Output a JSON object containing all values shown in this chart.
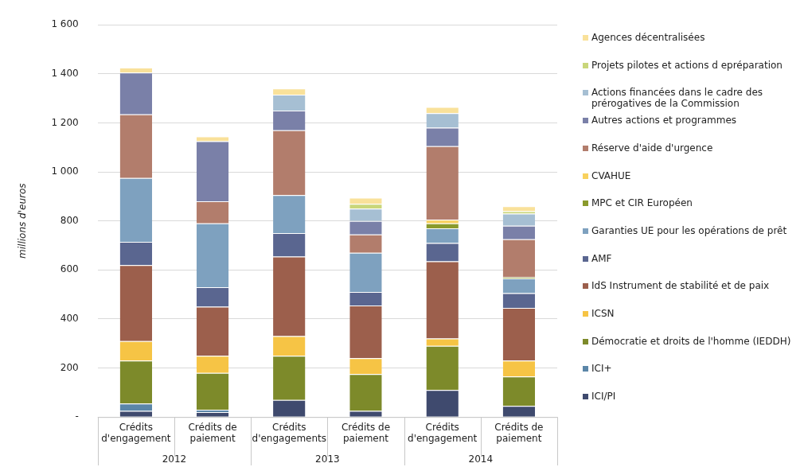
{
  "chart_data": {
    "type": "bar",
    "stacked": true,
    "ylabel": "millions d'euros",
    "categories": [
      "Crédits\nd'engagement",
      "Crédits de\npaiement",
      "Crédits\nd'engagements",
      "Crédits de\npaiement",
      "Crédits\nd'engagement",
      "Crédits de\npaiement"
    ],
    "annotations": [
      "2012",
      "2013",
      "2014"
    ],
    "ylim": [
      0,
      1600
    ],
    "yticks": [
      {
        "value": 0,
        "label": "-"
      },
      200,
      400,
      600,
      800,
      {
        "value": 1000,
        "label": "1 000"
      },
      {
        "value": 1200,
        "label": "1 200"
      },
      {
        "value": 1400,
        "label": "1 400"
      },
      {
        "value": 1600,
        "label": "1 600"
      }
    ],
    "grid": "y",
    "legend": "right",
    "series": [
      {
        "name": "ICI/PI",
        "color": "#3f4a6e",
        "values": [
          25,
          20,
          70,
          25,
          110,
          45
        ]
      },
      {
        "name": "ICI+",
        "color": "#5b86a8",
        "values": [
          30,
          10,
          0,
          0,
          0,
          0
        ]
      },
      {
        "name": "Démocratie et droits de l'homme (IEDDH)",
        "color": "#7d8a2a",
        "values": [
          175,
          150,
          180,
          150,
          180,
          120
        ]
      },
      {
        "name": "ICSN",
        "color": "#f6c445",
        "values": [
          80,
          70,
          80,
          65,
          30,
          65
        ]
      },
      {
        "name": "IdS Instrument de stabilité et de paix",
        "color": "#9c5f4c",
        "values": [
          310,
          200,
          325,
          215,
          315,
          215
        ]
      },
      {
        "name": "AMF",
        "color": "#5a6690",
        "values": [
          95,
          80,
          95,
          55,
          75,
          60
        ]
      },
      {
        "name": "Garanties UE pour les opérations de prêt",
        "color": "#7ea1bf",
        "values": [
          260,
          260,
          155,
          160,
          60,
          60
        ]
      },
      {
        "name": "MPC et CIR Européen",
        "color": "#8a9a2c",
        "values": [
          0,
          0,
          0,
          0,
          20,
          5
        ]
      },
      {
        "name": "CVAHUE",
        "color": "#f8d15e",
        "values": [
          0,
          0,
          0,
          0,
          15,
          null
        ]
      },
      {
        "name": "Réserve d'aide d'urgence",
        "color": "#b27d6c",
        "values": [
          260,
          90,
          265,
          75,
          300,
          155
        ]
      },
      {
        "name": "Autres actions et programmes",
        "color": "#7a80a8",
        "values": [
          170,
          245,
          80,
          55,
          75,
          55
        ]
      },
      {
        "name": " Actions financées dans le cadre des prérogatives de la Commission",
        "color": "#a6bfd3",
        "values": [
          0,
          0,
          65,
          50,
          60,
          50
        ]
      },
      {
        "name": "Projets pilotes et actions d epréparation",
        "color": "#c9d67a",
        "values": [
          0,
          0,
          0,
          20,
          0,
          10
        ]
      },
      {
        "name": "Agences décentralisées",
        "color": "#f9e19a",
        "values": [
          20,
          20,
          25,
          25,
          25,
          20
        ]
      }
    ]
  }
}
